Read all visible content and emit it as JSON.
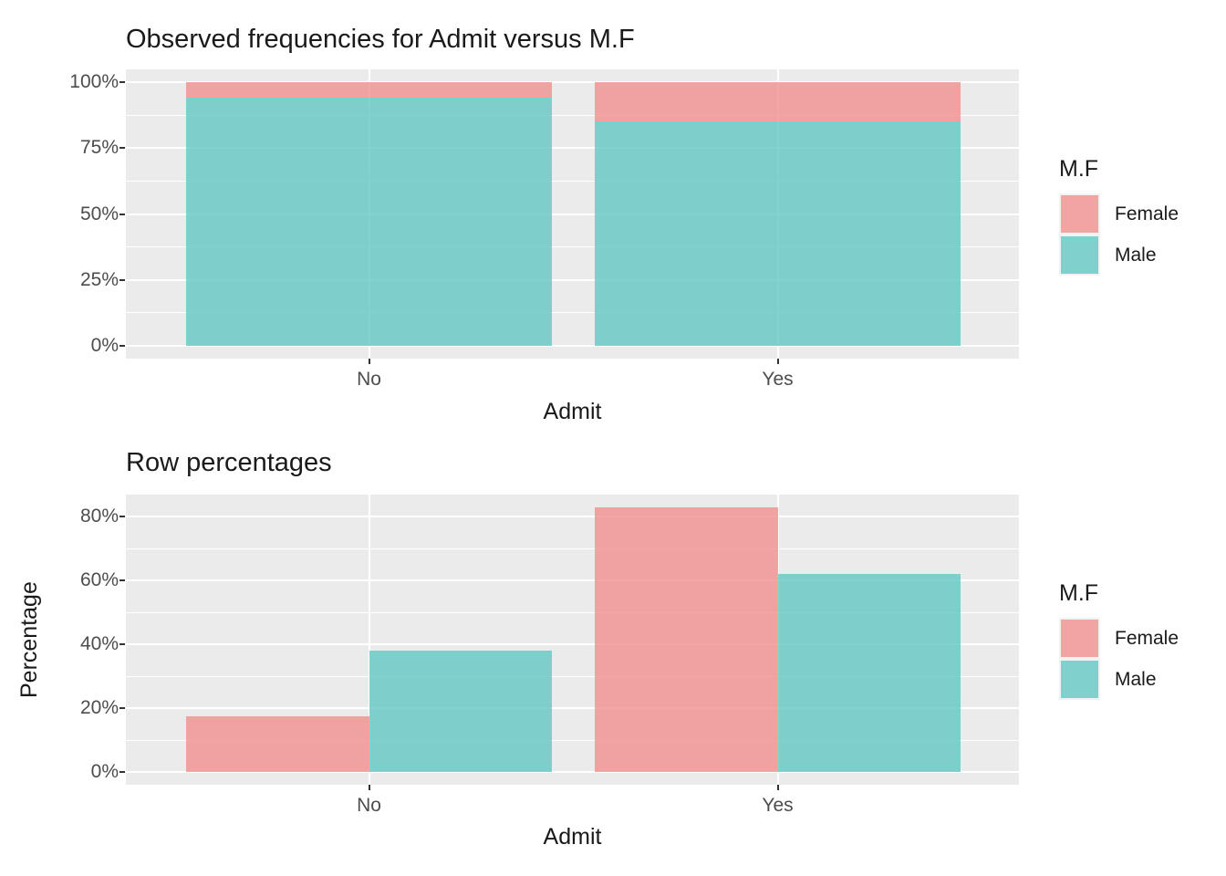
{
  "style": {
    "background": "#FFFFFF",
    "panel_background": "#EBEBEB",
    "gridline_color": "#FFFFFF",
    "tick_mark_color": "#333333",
    "tick_label_color": "#4D4D4D",
    "text_color": "#1A1A1A",
    "legend_key_background": "#F2F2F2",
    "female_color": "rgba(241,144,141,0.8)",
    "male_color": "rgba(96,200,195,0.8)"
  },
  "chart_data": [
    {
      "type": "bar",
      "variant": "stacked-percent",
      "title": "Observed frequencies for Admit versus M.F",
      "xlabel": "Admit",
      "ylabel": "",
      "categories": [
        "No",
        "Yes"
      ],
      "series": [
        {
          "name": "Female",
          "values": [
            6,
            15
          ]
        },
        {
          "name": "Male",
          "values": [
            94,
            85
          ]
        }
      ],
      "y_ticks": [
        "0%",
        "25%",
        "50%",
        "75%",
        "100%"
      ],
      "ylim": [
        0,
        100
      ],
      "grid": true,
      "legend": {
        "title": "M.F",
        "position": "right",
        "labels": [
          "Female",
          "Male"
        ]
      }
    },
    {
      "type": "bar",
      "variant": "grouped",
      "title": "Row percentages",
      "xlabel": "Admit",
      "ylabel": "Percentage",
      "categories": [
        "No",
        "Yes"
      ],
      "series": [
        {
          "name": "Female",
          "values": [
            17.5,
            83
          ]
        },
        {
          "name": "Male",
          "values": [
            38,
            62
          ]
        }
      ],
      "y_ticks": [
        "0%",
        "20%",
        "40%",
        "60%",
        "80%"
      ],
      "ylim": [
        0,
        87
      ],
      "grid": true,
      "legend": {
        "title": "M.F",
        "position": "right",
        "labels": [
          "Female",
          "Male"
        ]
      }
    }
  ]
}
